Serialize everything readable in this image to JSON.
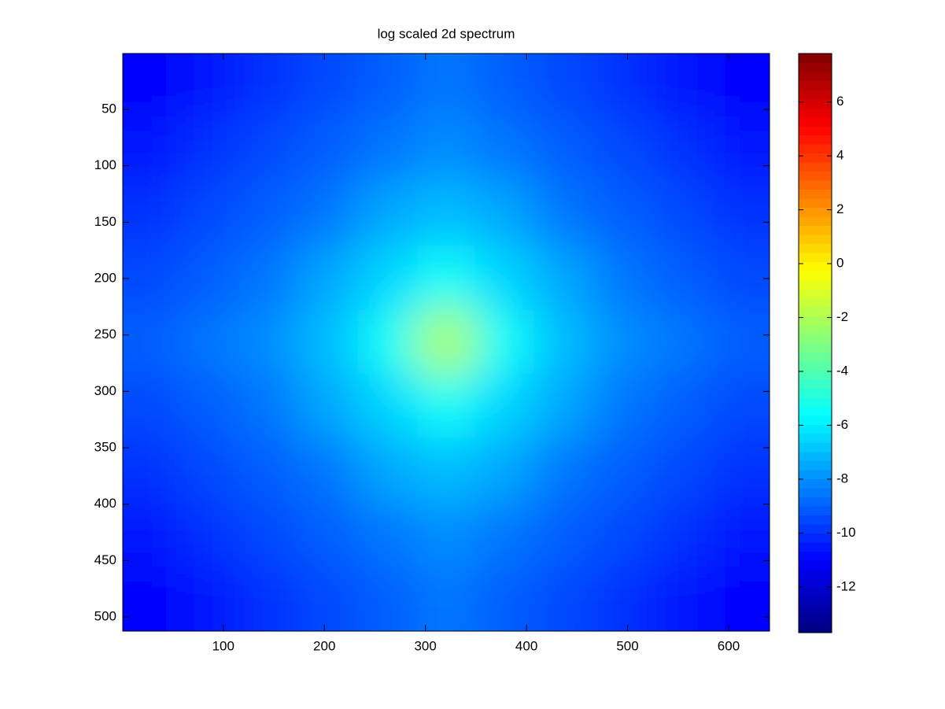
{
  "chart_data": {
    "type": "heatmap",
    "title": "log scaled 2d spectrum",
    "x": [
      29,
      87,
      145,
      204,
      262,
      320,
      378,
      436,
      495,
      553,
      611
    ],
    "y": [
      28,
      85,
      142,
      199,
      256,
      313,
      370,
      427,
      484
    ],
    "z": [
      [
        -11,
        -10.5,
        -10,
        -9.5,
        -9,
        -8.5,
        -9,
        -9.5,
        -10,
        -10.5,
        -11
      ],
      [
        -10.5,
        -10,
        -9.5,
        -9,
        -8.5,
        -8,
        -8.5,
        -9,
        -9.5,
        -10,
        -10.5
      ],
      [
        -10,
        -9.5,
        -9,
        -8.5,
        -7.5,
        -7,
        -7.5,
        -8.5,
        -9,
        -9.5,
        -10
      ],
      [
        -9.5,
        -9,
        -8.5,
        -7.5,
        -6.5,
        -5.5,
        -6.5,
        -7.5,
        -8.5,
        -9,
        -9.5
      ],
      [
        -9,
        -8.5,
        -8,
        -7,
        -5.5,
        -2,
        -5.5,
        -7,
        -8,
        -8.5,
        -9
      ],
      [
        -9.5,
        -9,
        -8.5,
        -7.5,
        -6.5,
        -5.5,
        -6.5,
        -7.5,
        -8.5,
        -9,
        -9.5
      ],
      [
        -10,
        -9.5,
        -9,
        -8.5,
        -7.5,
        -7,
        -7.5,
        -8.5,
        -9,
        -9.5,
        -10
      ],
      [
        -10.5,
        -10,
        -9.5,
        -9,
        -8.5,
        -8,
        -8.5,
        -9,
        -9.5,
        -10,
        -10.5
      ],
      [
        -11,
        -10.5,
        -10,
        -9.5,
        -9,
        -8.5,
        -9,
        -9.5,
        -10,
        -10.5,
        -11
      ]
    ],
    "xlim": [
      0.5,
      640.5
    ],
    "ylim": [
      0.5,
      512.5
    ],
    "y_reversed": true,
    "xticks": [
      100,
      200,
      300,
      400,
      500,
      600
    ],
    "yticks": [
      50,
      100,
      150,
      200,
      250,
      300,
      350,
      400,
      450,
      500
    ],
    "colormap": "jet",
    "clim": [
      -13.7,
      7.8
    ],
    "cticks": [
      -12,
      -10,
      -8,
      -6,
      -4,
      -2,
      0,
      2,
      4,
      6
    ]
  }
}
